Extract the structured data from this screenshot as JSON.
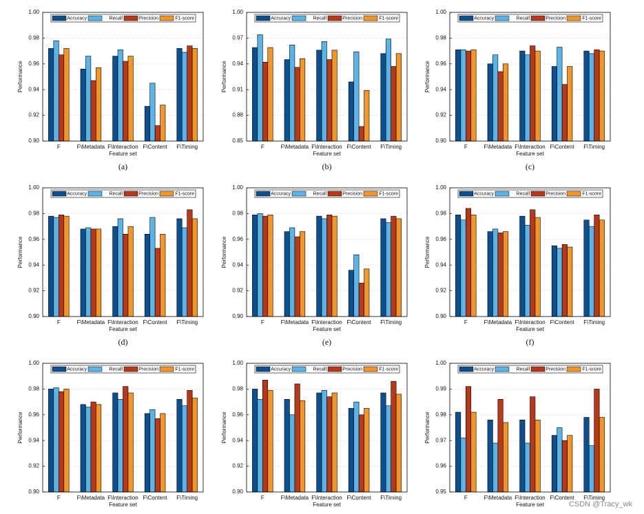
{
  "chart_data": [
    {
      "type": "bar",
      "caption": "(a)",
      "xlabel": "Feature set",
      "ylabel": "Performance",
      "categories": [
        "F",
        "F\\Metadata",
        "F\\Interaction",
        "F\\Content",
        "F\\Timing"
      ],
      "series": [
        {
          "name": "Accuracy",
          "color": "#0d4f8f",
          "values": [
            0.972,
            0.956,
            0.966,
            0.927,
            0.972
          ]
        },
        {
          "name": "Recall",
          "color": "#5ab4e8",
          "values": [
            0.978,
            0.966,
            0.971,
            0.945,
            0.969
          ]
        },
        {
          "name": "Precision",
          "color": "#b8391a",
          "values": [
            0.967,
            0.947,
            0.962,
            0.912,
            0.974
          ]
        },
        {
          "name": "F1-score",
          "color": "#f0962a",
          "values": [
            0.972,
            0.957,
            0.966,
            0.928,
            0.972
          ]
        }
      ],
      "ylim": [
        0.9,
        1.0
      ],
      "yticks": [
        {
          "value": 0.9,
          "label": "0.90"
        },
        {
          "value": 0.92,
          "label": "0.92"
        },
        {
          "value": 0.94,
          "label": "0.94"
        },
        {
          "value": 0.96,
          "label": "0.96"
        },
        {
          "value": 0.98,
          "label": "0.98"
        },
        {
          "value": 1.0,
          "label": "1.00"
        }
      ],
      "grid": true,
      "legend": "top"
    },
    {
      "type": "bar",
      "caption": "(b)",
      "xlabel": "Feature set",
      "ylabel": "Performance",
      "categories": [
        "F",
        "F\\Metadata",
        "F\\Interaction",
        "F\\Content",
        "F\\Timing"
      ],
      "series": [
        {
          "name": "Accuracy",
          "color": "#0d4f8f",
          "values": [
            0.959,
            0.945,
            0.956,
            0.919,
            0.952
          ]
        },
        {
          "name": "Recall",
          "color": "#5ab4e8",
          "values": [
            0.974,
            0.962,
            0.966,
            0.954,
            0.969
          ]
        },
        {
          "name": "Precision",
          "color": "#b8391a",
          "values": [
            0.942,
            0.936,
            0.945,
            0.867,
            0.937
          ]
        },
        {
          "name": "F1-score",
          "color": "#f0962a",
          "values": [
            0.959,
            0.946,
            0.956,
            0.909,
            0.952
          ]
        }
      ],
      "ylim": [
        0.85,
        1.0
      ],
      "yticks": [
        {
          "value": 0.85,
          "label": "0.85"
        },
        {
          "value": 0.88,
          "label": "0.88"
        },
        {
          "value": 0.91,
          "label": "0.91"
        },
        {
          "value": 0.94,
          "label": "0.94"
        },
        {
          "value": 0.97,
          "label": "0.97"
        },
        {
          "value": 1.0,
          "label": "1.00"
        }
      ],
      "grid": true,
      "legend": "top"
    },
    {
      "type": "bar",
      "caption": "(c)",
      "xlabel": "Feature set",
      "ylabel": "Performance",
      "categories": [
        "F",
        "F\\Metadata",
        "F\\Interaction",
        "F\\Content",
        "F\\Timing"
      ],
      "series": [
        {
          "name": "Accuracy",
          "color": "#0d4f8f",
          "values": [
            0.971,
            0.96,
            0.97,
            0.958,
            0.97
          ]
        },
        {
          "name": "Recall",
          "color": "#5ab4e8",
          "values": [
            0.971,
            0.967,
            0.967,
            0.973,
            0.968
          ]
        },
        {
          "name": "Precision",
          "color": "#b8391a",
          "values": [
            0.97,
            0.954,
            0.974,
            0.944,
            0.971
          ]
        },
        {
          "name": "F1-score",
          "color": "#f0962a",
          "values": [
            0.971,
            0.96,
            0.97,
            0.958,
            0.97
          ]
        }
      ],
      "ylim": [
        0.9,
        1.0
      ],
      "yticks": [
        {
          "value": 0.9,
          "label": "0.90"
        },
        {
          "value": 0.92,
          "label": "0.92"
        },
        {
          "value": 0.94,
          "label": "0.94"
        },
        {
          "value": 0.96,
          "label": "0.96"
        },
        {
          "value": 0.98,
          "label": "0.98"
        },
        {
          "value": 1.0,
          "label": "1.00"
        }
      ],
      "grid": true,
      "legend": "top"
    },
    {
      "type": "bar",
      "caption": "(d)",
      "xlabel": "Feature set",
      "ylabel": "Performance",
      "categories": [
        "F",
        "F\\Metadata",
        "F\\Interaction",
        "F\\Content",
        "F\\Timing"
      ],
      "series": [
        {
          "name": "Accuracy",
          "color": "#0d4f8f",
          "values": [
            0.978,
            0.968,
            0.97,
            0.964,
            0.976
          ]
        },
        {
          "name": "Recall",
          "color": "#5ab4e8",
          "values": [
            0.977,
            0.969,
            0.976,
            0.977,
            0.969
          ]
        },
        {
          "name": "Precision",
          "color": "#b8391a",
          "values": [
            0.979,
            0.968,
            0.964,
            0.953,
            0.983
          ]
        },
        {
          "name": "F1-score",
          "color": "#f0962a",
          "values": [
            0.978,
            0.968,
            0.97,
            0.964,
            0.976
          ]
        }
      ],
      "ylim": [
        0.9,
        1.0
      ],
      "yticks": [
        {
          "value": 0.9,
          "label": "0.90"
        },
        {
          "value": 0.92,
          "label": "0.92"
        },
        {
          "value": 0.94,
          "label": "0.94"
        },
        {
          "value": 0.96,
          "label": "0.96"
        },
        {
          "value": 0.98,
          "label": "0.98"
        },
        {
          "value": 1.0,
          "label": "1.00"
        }
      ],
      "grid": true,
      "legend": "top"
    },
    {
      "type": "bar",
      "caption": "(e)",
      "xlabel": "Feature set",
      "ylabel": "Performance",
      "categories": [
        "F",
        "F\\Metadata",
        "F\\Interaction",
        "F\\Content",
        "F\\Timing"
      ],
      "series": [
        {
          "name": "Accuracy",
          "color": "#0d4f8f",
          "values": [
            0.979,
            0.966,
            0.978,
            0.936,
            0.976
          ]
        },
        {
          "name": "Recall",
          "color": "#5ab4e8",
          "values": [
            0.98,
            0.969,
            0.976,
            0.948,
            0.973
          ]
        },
        {
          "name": "Precision",
          "color": "#b8391a",
          "values": [
            0.978,
            0.962,
            0.979,
            0.926,
            0.978
          ]
        },
        {
          "name": "F1-score",
          "color": "#f0962a",
          "values": [
            0.979,
            0.966,
            0.978,
            0.937,
            0.976
          ]
        }
      ],
      "ylim": [
        0.9,
        1.0
      ],
      "yticks": [
        {
          "value": 0.9,
          "label": "0.90"
        },
        {
          "value": 0.92,
          "label": "0.92"
        },
        {
          "value": 0.94,
          "label": "0.94"
        },
        {
          "value": 0.96,
          "label": "0.96"
        },
        {
          "value": 0.98,
          "label": "0.98"
        },
        {
          "value": 1.0,
          "label": "1.00"
        }
      ],
      "grid": true,
      "legend": "top"
    },
    {
      "type": "bar",
      "caption": "(f)",
      "xlabel": "Feature set",
      "ylabel": "Performance",
      "categories": [
        "F",
        "F\\Metadata",
        "F\\Interaction",
        "F\\Content",
        "F\\Timing"
      ],
      "series": [
        {
          "name": "Accuracy",
          "color": "#0d4f8f",
          "values": [
            0.979,
            0.966,
            0.978,
            0.955,
            0.975
          ]
        },
        {
          "name": "Recall",
          "color": "#5ab4e8",
          "values": [
            0.975,
            0.968,
            0.971,
            0.953,
            0.97
          ]
        },
        {
          "name": "Precision",
          "color": "#b8391a",
          "values": [
            0.984,
            0.965,
            0.983,
            0.956,
            0.979
          ]
        },
        {
          "name": "F1-score",
          "color": "#f0962a",
          "values": [
            0.979,
            0.966,
            0.977,
            0.954,
            0.975
          ]
        }
      ],
      "ylim": [
        0.9,
        1.0
      ],
      "yticks": [
        {
          "value": 0.9,
          "label": "0.90"
        },
        {
          "value": 0.92,
          "label": "0.92"
        },
        {
          "value": 0.94,
          "label": "0.94"
        },
        {
          "value": 0.96,
          "label": "0.96"
        },
        {
          "value": 0.98,
          "label": "0.98"
        },
        {
          "value": 1.0,
          "label": "1.00"
        }
      ],
      "grid": true,
      "legend": "top"
    },
    {
      "type": "bar",
      "xlabel": "Feature set",
      "ylabel": "Performance",
      "categories": [
        "F",
        "F\\Metadata",
        "F\\Interaction",
        "F\\Content",
        "F\\Timing"
      ],
      "series": [
        {
          "name": "Accuracy",
          "color": "#0d4f8f",
          "values": [
            0.98,
            0.968,
            0.977,
            0.961,
            0.972
          ]
        },
        {
          "name": "Recall",
          "color": "#5ab4e8",
          "values": [
            0.981,
            0.966,
            0.972,
            0.964,
            0.967
          ]
        },
        {
          "name": "Precision",
          "color": "#b8391a",
          "values": [
            0.978,
            0.97,
            0.982,
            0.957,
            0.979
          ]
        },
        {
          "name": "F1-score",
          "color": "#f0962a",
          "values": [
            0.98,
            0.968,
            0.977,
            0.961,
            0.973
          ]
        }
      ],
      "ylim": [
        0.9,
        1.0
      ],
      "yticks": [
        {
          "value": 0.9,
          "label": "0.90"
        },
        {
          "value": 0.92,
          "label": "0.92"
        },
        {
          "value": 0.94,
          "label": "0.94"
        },
        {
          "value": 0.96,
          "label": "0.96"
        },
        {
          "value": 0.98,
          "label": "0.98"
        },
        {
          "value": 1.0,
          "label": "1.00"
        }
      ],
      "grid": true,
      "legend": "top"
    },
    {
      "type": "bar",
      "xlabel": "Feature set",
      "ylabel": "Performance",
      "categories": [
        "F",
        "F\\Metadata",
        "F\\Interaction",
        "F\\Content",
        "F\\Timing"
      ],
      "series": [
        {
          "name": "Accuracy",
          "color": "#0d4f8f",
          "values": [
            0.98,
            0.972,
            0.977,
            0.965,
            0.977
          ]
        },
        {
          "name": "Recall",
          "color": "#5ab4e8",
          "values": [
            0.972,
            0.96,
            0.979,
            0.97,
            0.967
          ]
        },
        {
          "name": "Precision",
          "color": "#b8391a",
          "values": [
            0.987,
            0.984,
            0.974,
            0.96,
            0.986
          ]
        },
        {
          "name": "F1-score",
          "color": "#f0962a",
          "values": [
            0.979,
            0.971,
            0.977,
            0.965,
            0.976
          ]
        }
      ],
      "ylim": [
        0.9,
        1.0
      ],
      "yticks": [
        {
          "value": 0.9,
          "label": "0.90"
        },
        {
          "value": 0.92,
          "label": "0.92"
        },
        {
          "value": 0.94,
          "label": "0.94"
        },
        {
          "value": 0.96,
          "label": "0.96"
        },
        {
          "value": 0.98,
          "label": "0.98"
        },
        {
          "value": 1.0,
          "label": "1.00"
        }
      ],
      "grid": true,
      "legend": "top"
    },
    {
      "type": "bar",
      "xlabel": "Feature set",
      "ylabel": "Performance",
      "categories": [
        "F",
        "F\\Metadata",
        "F\\Interaction",
        "F\\Content",
        "F\\Timing"
      ],
      "series": [
        {
          "name": "Accuracy",
          "color": "#0d4f8f",
          "values": [
            0.981,
            0.978,
            0.978,
            0.972,
            0.979
          ]
        },
        {
          "name": "Recall",
          "color": "#5ab4e8",
          "values": [
            0.971,
            0.969,
            0.969,
            0.975,
            0.968
          ]
        },
        {
          "name": "Precision",
          "color": "#b8391a",
          "values": [
            0.991,
            0.986,
            0.987,
            0.97,
            0.99
          ]
        },
        {
          "name": "F1-score",
          "color": "#f0962a",
          "values": [
            0.981,
            0.977,
            0.978,
            0.972,
            0.979
          ]
        }
      ],
      "ylim": [
        0.95,
        1.0
      ],
      "yticks": [
        {
          "value": 0.95,
          "label": "0.95"
        },
        {
          "value": 0.96,
          "label": "0.96"
        },
        {
          "value": 0.97,
          "label": "0.97"
        },
        {
          "value": 0.98,
          "label": "0.98"
        },
        {
          "value": 0.99,
          "label": "0.99"
        },
        {
          "value": 1.0,
          "label": "1.00"
        }
      ],
      "grid": true,
      "legend": "top"
    }
  ],
  "watermark": "CSDN @Tracy_wk"
}
